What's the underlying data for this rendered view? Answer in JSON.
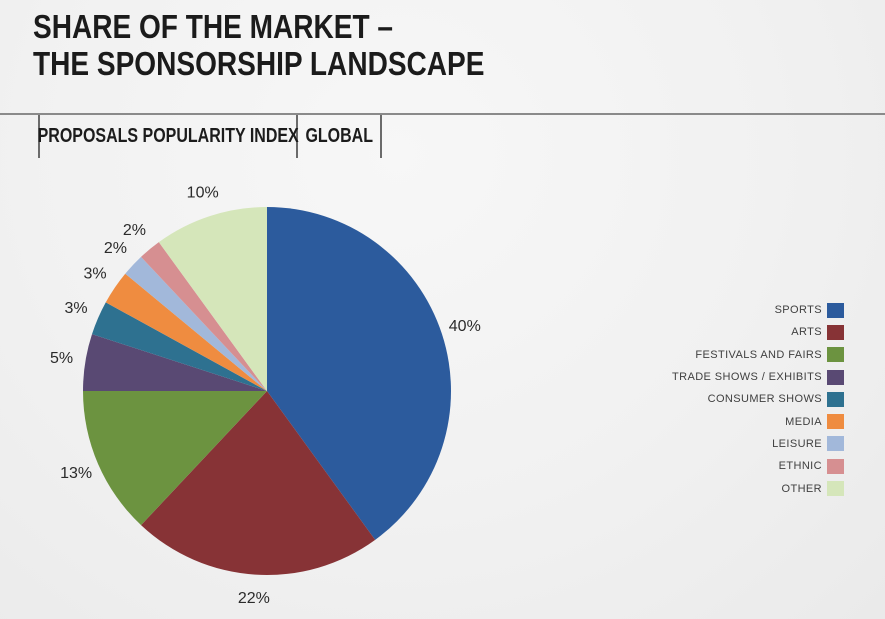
{
  "page": {
    "title_line1": "SHARE OF THE MARKET –",
    "title_line2": "THE SPONSORSHIP LANDSCAPE"
  },
  "tabs": [
    {
      "label": "PROPOSALS POPULARITY INDEX"
    },
    {
      "label": "GLOBAL"
    }
  ],
  "chart_data": {
    "type": "pie",
    "title": "SHARE OF THE MARKET – THE SPONSORSHIP LANDSCAPE",
    "subtitle": "PROPOSALS POPULARITY INDEX | GLOBAL",
    "direction": "clockwise",
    "start_angle_deg": 0,
    "legend_position": "right",
    "categories": [
      "SPORTS",
      "ARTS",
      "FESTIVALS AND FAIRS",
      "TRADE SHOWS / EXHIBITS",
      "CONSUMER SHOWS",
      "MEDIA",
      "LEISURE",
      "ETHNIC",
      "OTHER"
    ],
    "values": [
      40,
      22,
      13,
      5,
      3,
      3,
      2,
      2,
      10
    ],
    "labels": [
      "40%",
      "22%",
      "13%",
      "5%",
      "3%",
      "3%",
      "2%",
      "2%",
      "10%"
    ],
    "colors": [
      "#2c5b9d",
      "#873336",
      "#6c9340",
      "#594973",
      "#2e7190",
      "#ef8c40",
      "#a2b8da",
      "#d68f91",
      "#d5e6ba"
    ]
  },
  "colors": {
    "background": "#f1f1f1",
    "title_text": "#1b1b1b",
    "rule_line": "#8a8a8a",
    "divider": "#6b6b6b",
    "legend_text": "#404040",
    "slice_label_text": "#2b2b2b"
  }
}
